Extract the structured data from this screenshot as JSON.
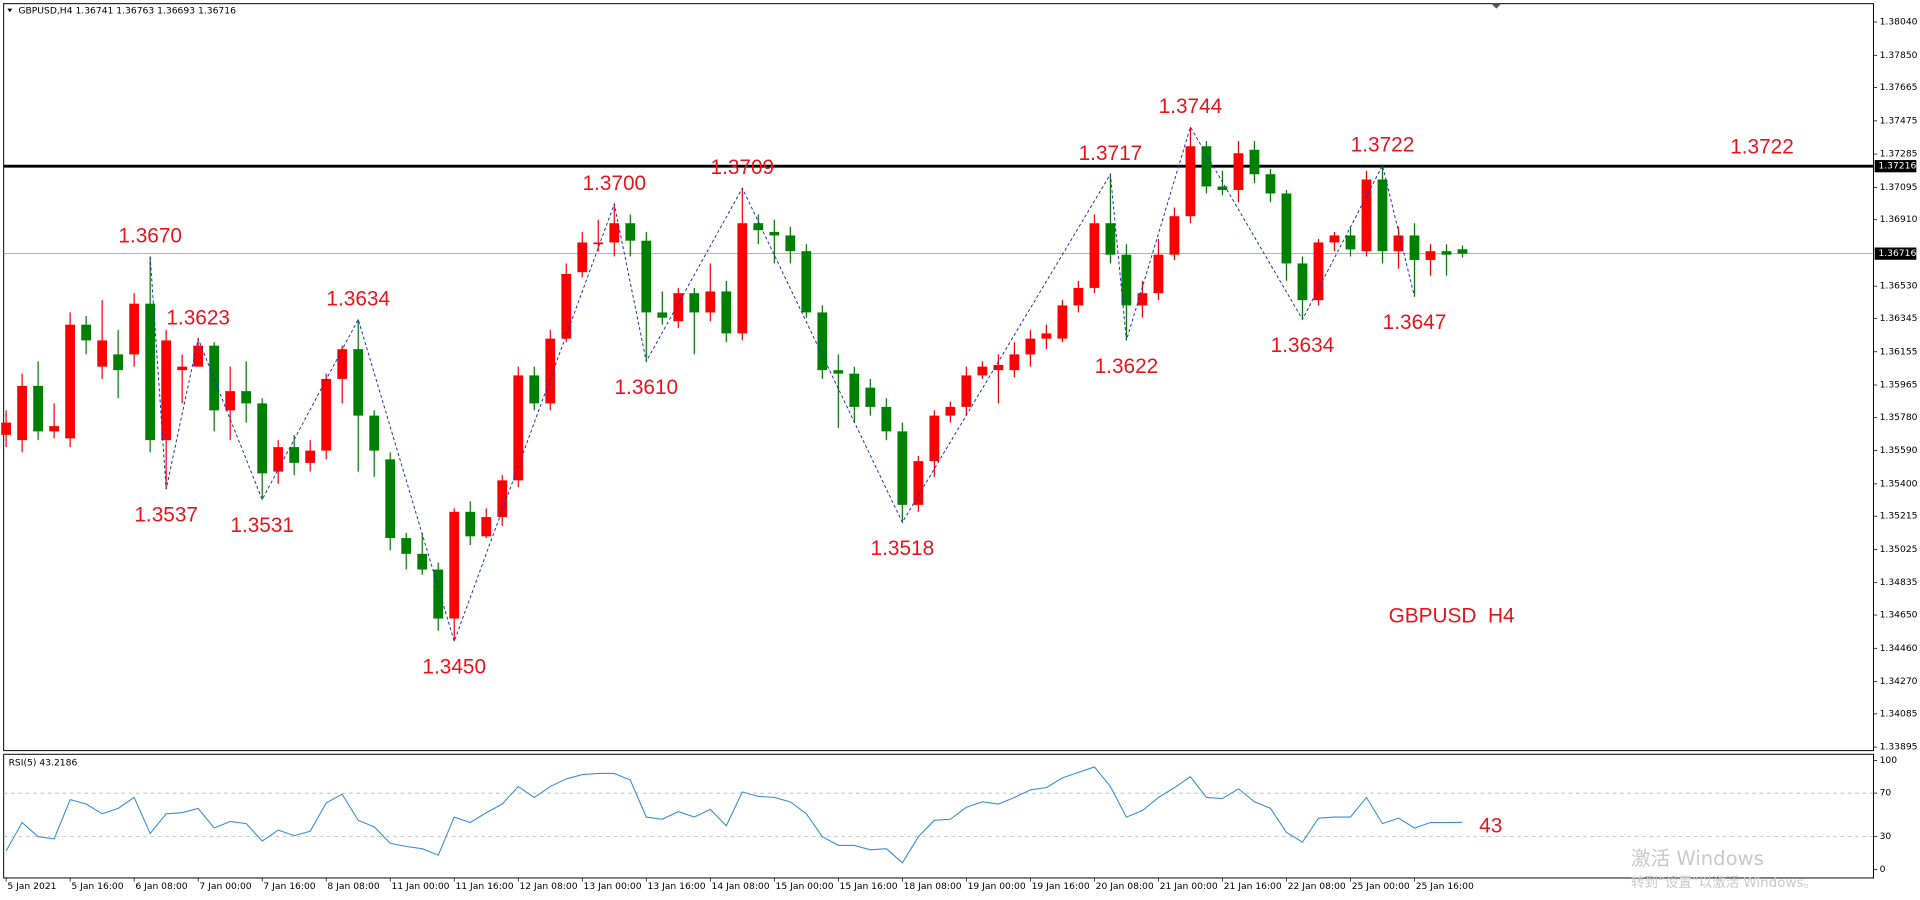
{
  "header": "GBPUSD,H4  1.36741 1.36763 1.36693 1.36716",
  "watermark": {
    "title": "激活 Windows",
    "subtitle": "转到“设置”以激活 Windows。"
  },
  "chart_data": [
    {
      "type": "candlestick",
      "symbol_label": "GBPUSD  H4",
      "up_color": "#ff0000",
      "down_color": "#008000",
      "categories": [
        "5 Jan 2021",
        null,
        null,
        null,
        "5 Jan 16:00",
        null,
        null,
        null,
        "6 Jan 08:00",
        null,
        null,
        null,
        "7 Jan 00:00",
        null,
        null,
        null,
        "7 Jan 16:00",
        null,
        null,
        null,
        "8 Jan 08:00",
        null,
        null,
        null,
        "11 Jan 00:00",
        null,
        null,
        null,
        "11 Jan 16:00",
        null,
        null,
        null,
        "12 Jan 08:00",
        null,
        null,
        null,
        "13 Jan 00:00",
        null,
        null,
        null,
        "13 Jan 16:00",
        null,
        null,
        null,
        "14 Jan 08:00",
        null,
        null,
        null,
        "15 Jan 00:00",
        null,
        null,
        null,
        "15 Jan 16:00",
        null,
        null,
        null,
        "18 Jan 08:00",
        null,
        null,
        null,
        "19 Jan 00:00",
        null,
        null,
        null,
        "19 Jan 16:00",
        null,
        null,
        null,
        "20 Jan 08:00",
        null,
        null,
        null,
        "21 Jan 00:00",
        null,
        null,
        null,
        "21 Jan 16:00",
        null,
        null,
        null,
        "22 Jan 08:00",
        null,
        null,
        null,
        "25 Jan 00:00",
        null,
        null,
        null,
        "25 Jan 16:00",
        null,
        null,
        null
      ],
      "open": [
        1.3568,
        1.3565,
        1.3596,
        1.357,
        1.3566,
        1.3631,
        1.3607,
        1.3614,
        1.3614,
        1.3643,
        1.3565,
        1.3605,
        1.3607,
        1.3619,
        1.3582,
        1.3593,
        1.3586,
        1.3547,
        1.3561,
        1.3552,
        1.3559,
        1.36,
        1.3617,
        1.3579,
        1.3554,
        1.3509,
        1.35,
        1.3491,
        1.3463,
        1.3524,
        1.351,
        1.3521,
        1.3542,
        1.3602,
        1.3586,
        1.3623,
        1.3661,
        1.3677,
        1.3678,
        1.3689,
        1.3679,
        1.3638,
        1.3633,
        1.3649,
        1.3638,
        1.365,
        1.3626,
        1.3689,
        1.3684,
        1.3682,
        1.3673,
        1.3638,
        1.3605,
        1.3603,
        1.3595,
        1.3584,
        1.357,
        1.3528,
        1.3553,
        1.3579,
        1.3584,
        1.3602,
        1.3605,
        1.3605,
        1.3614,
        1.3623,
        1.3623,
        1.3642,
        1.3652,
        1.3689,
        1.3671,
        1.3642,
        1.3649,
        1.3671,
        1.3693,
        1.3733,
        1.371,
        1.3708,
        1.3731,
        1.3717,
        1.3706,
        1.3666,
        1.3645,
        1.3678,
        1.3682,
        1.3673,
        1.3714,
        1.3673,
        1.3682,
        1.3668,
        1.3673,
        1.36741
      ],
      "high": [
        1.3582,
        1.3603,
        1.361,
        1.3586,
        1.3638,
        1.3636,
        1.3645,
        1.3628,
        1.3649,
        1.367,
        1.3628,
        1.3614,
        1.3623,
        1.3621,
        1.3607,
        1.361,
        1.3589,
        1.3565,
        1.3568,
        1.3565,
        1.3603,
        1.3619,
        1.3634,
        1.3582,
        1.3558,
        1.3512,
        1.3512,
        1.3495,
        1.3526,
        1.353,
        1.3526,
        1.3545,
        1.3607,
        1.3607,
        1.3628,
        1.3666,
        1.3684,
        1.3691,
        1.37,
        1.3694,
        1.3684,
        1.365,
        1.3652,
        1.3652,
        1.3666,
        1.3656,
        1.3709,
        1.3694,
        1.3691,
        1.3687,
        1.3677,
        1.3642,
        1.3614,
        1.3607,
        1.36,
        1.3589,
        1.3575,
        1.3556,
        1.3582,
        1.3587,
        1.3607,
        1.361,
        1.3614,
        1.3621,
        1.3628,
        1.3631,
        1.3645,
        1.3656,
        1.3694,
        1.3717,
        1.3677,
        1.3656,
        1.368,
        1.3698,
        1.3744,
        1.3736,
        1.3719,
        1.3736,
        1.3736,
        1.372,
        1.3708,
        1.367,
        1.368,
        1.3684,
        1.3687,
        1.3719,
        1.3722,
        1.3687,
        1.3689,
        1.3677,
        1.3677,
        1.36763
      ],
      "low": [
        1.3561,
        1.3558,
        1.3565,
        1.3566,
        1.3561,
        1.3614,
        1.36,
        1.3589,
        1.3607,
        1.3558,
        1.3537,
        1.3586,
        1.3607,
        1.357,
        1.3565,
        1.3575,
        1.3531,
        1.354,
        1.3545,
        1.3547,
        1.3554,
        1.3586,
        1.3547,
        1.3544,
        1.3502,
        1.3491,
        1.3488,
        1.3456,
        1.345,
        1.3505,
        1.3509,
        1.3516,
        1.3538,
        1.3582,
        1.3582,
        1.3621,
        1.3658,
        1.3673,
        1.367,
        1.367,
        1.361,
        1.3631,
        1.3629,
        1.3614,
        1.3633,
        1.3621,
        1.3622,
        1.3677,
        1.3666,
        1.3666,
        1.3635,
        1.36,
        1.3572,
        1.3575,
        1.3579,
        1.3565,
        1.3518,
        1.3524,
        1.3544,
        1.3575,
        1.3579,
        1.36,
        1.3586,
        1.3601,
        1.3607,
        1.3617,
        1.3621,
        1.3638,
        1.3649,
        1.3666,
        1.3622,
        1.3635,
        1.3645,
        1.3668,
        1.3689,
        1.3706,
        1.3705,
        1.3701,
        1.3712,
        1.3701,
        1.3656,
        1.3634,
        1.3642,
        1.3673,
        1.367,
        1.367,
        1.3666,
        1.3663,
        1.3647,
        1.3659,
        1.3659,
        1.36693
      ],
      "close": [
        1.3575,
        1.3596,
        1.357,
        1.3573,
        1.3631,
        1.3622,
        1.3622,
        1.3605,
        1.3643,
        1.3565,
        1.3622,
        1.3607,
        1.3619,
        1.3582,
        1.3593,
        1.3586,
        1.3546,
        1.3561,
        1.3552,
        1.3559,
        1.36,
        1.3617,
        1.3579,
        1.3559,
        1.3509,
        1.35,
        1.3491,
        1.3463,
        1.3524,
        1.351,
        1.3521,
        1.3542,
        1.3602,
        1.3586,
        1.3623,
        1.366,
        1.3678,
        1.3678,
        1.3689,
        1.3679,
        1.3638,
        1.3635,
        1.3649,
        1.3638,
        1.365,
        1.3626,
        1.3689,
        1.3685,
        1.3682,
        1.3673,
        1.3638,
        1.3605,
        1.3603,
        1.3584,
        1.3584,
        1.357,
        1.3528,
        1.3553,
        1.3579,
        1.3584,
        1.3602,
        1.3607,
        1.3608,
        1.3614,
        1.3623,
        1.3626,
        1.3642,
        1.3652,
        1.3689,
        1.3671,
        1.3642,
        1.3649,
        1.3671,
        1.3693,
        1.3733,
        1.371,
        1.3708,
        1.3729,
        1.3717,
        1.3706,
        1.3666,
        1.3645,
        1.3678,
        1.3682,
        1.3674,
        1.3714,
        1.3673,
        1.3682,
        1.3668,
        1.3673,
        1.3671,
        1.36716
      ],
      "zigzag": {
        "color": "#1f2fbf",
        "points": [
          {
            "candle": 9,
            "value": 1.367,
            "label": "1.3670"
          },
          {
            "candle": 10,
            "value": 1.3537,
            "label": "1.3537"
          },
          {
            "candle": 12,
            "value": 1.3623,
            "label": "1.3623"
          },
          {
            "candle": 16,
            "value": 1.3531,
            "label": "1.3531"
          },
          {
            "candle": 22,
            "value": 1.3634,
            "label": "1.3634"
          },
          {
            "candle": 28,
            "value": 1.345,
            "label": "1.3450"
          },
          {
            "candle": 38,
            "value": 1.37,
            "label": "1.3700"
          },
          {
            "candle": 40,
            "value": 1.361,
            "label": "1.3610"
          },
          {
            "candle": 46,
            "value": 1.3709,
            "label": "1.3709"
          },
          {
            "candle": 56,
            "value": 1.3518,
            "label": "1.3518"
          },
          {
            "candle": 69,
            "value": 1.3717,
            "label": "1.3717"
          },
          {
            "candle": 70,
            "value": 1.3622,
            "label": "1.3622"
          },
          {
            "candle": 74,
            "value": 1.3744,
            "label": "1.3744"
          },
          {
            "candle": 81,
            "value": 1.3634,
            "label": "1.3634"
          },
          {
            "candle": 86,
            "value": 1.3722,
            "label": "1.3722"
          },
          {
            "candle": 88,
            "value": 1.3647,
            "label": "1.3647"
          }
        ]
      },
      "level": {
        "value": 1.37216,
        "label": "1.3722",
        "axis_label": "1.37216"
      },
      "last_price": {
        "value": 1.36716,
        "label": "1.36716"
      },
      "ylim": [
        1.33875,
        1.38131
      ],
      "yticks": [
        {
          "value": 1.3804,
          "label": "1.38040"
        },
        {
          "value": 1.3785,
          "label": "1.37850"
        },
        {
          "value": 1.37665,
          "label": "1.37665"
        },
        {
          "value": 1.37475,
          "label": "1.37475"
        },
        {
          "value": 1.37285,
          "label": "1.37285"
        },
        {
          "value": 1.37095,
          "label": "1.37095"
        },
        {
          "value": 1.3691,
          "label": "1.36910"
        },
        {
          "value": 1.3653,
          "label": "1.36530"
        },
        {
          "value": 1.36345,
          "label": "1.36345"
        },
        {
          "value": 1.36155,
          "label": "1.36155"
        },
        {
          "value": 1.35965,
          "label": "1.35965"
        },
        {
          "value": 1.3578,
          "label": "1.35780"
        },
        {
          "value": 1.3559,
          "label": "1.35590"
        },
        {
          "value": 1.354,
          "label": "1.35400"
        },
        {
          "value": 1.35215,
          "label": "1.35215"
        },
        {
          "value": 1.35025,
          "label": "1.35025"
        },
        {
          "value": 1.34835,
          "label": "1.34835"
        },
        {
          "value": 1.3465,
          "label": "1.34650"
        },
        {
          "value": 1.3446,
          "label": "1.34460"
        },
        {
          "value": 1.3427,
          "label": "1.34270"
        },
        {
          "value": 1.34085,
          "label": "1.34085"
        },
        {
          "value": 1.33895,
          "label": "1.33895"
        }
      ]
    },
    {
      "type": "line",
      "title": "RSI(5) 43.2186",
      "color": "#3a8fd8",
      "values": [
        17,
        43,
        30,
        28,
        64,
        60,
        51,
        56,
        66,
        33,
        51,
        52,
        56,
        38,
        44,
        42,
        26,
        36,
        31,
        35,
        61,
        69,
        45,
        39,
        24,
        21,
        19,
        13,
        48,
        43,
        52,
        60,
        76,
        66,
        76,
        83,
        87,
        88,
        88,
        82,
        48,
        46,
        53,
        48,
        55,
        40,
        71,
        67,
        66,
        62,
        51,
        30,
        22,
        22,
        18,
        19,
        6,
        30,
        45,
        46,
        57,
        62,
        60,
        66,
        73,
        75,
        84,
        89,
        94,
        76,
        48,
        54,
        66,
        75,
        85,
        66,
        65,
        74,
        62,
        56,
        34,
        25,
        47,
        48,
        48,
        66,
        42,
        47,
        38,
        43,
        43,
        43.2186
      ],
      "last_label": "43",
      "levels": [
        30,
        70
      ],
      "ylim": [
        0,
        100
      ],
      "yticks": [
        0,
        30,
        70,
        100
      ]
    }
  ]
}
